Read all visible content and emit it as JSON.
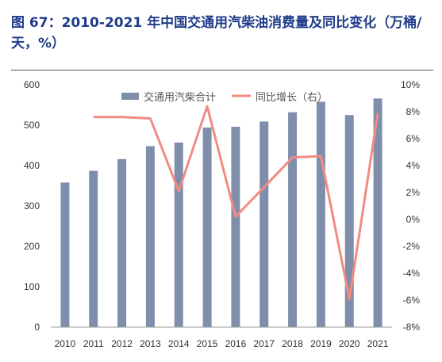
{
  "title": "图 67：2010-2021 年中国交通用汽柴油消费量及同比变化（万桶/天，%）",
  "chart_data": {
    "type": "bar",
    "categories": [
      "2010",
      "2011",
      "2012",
      "2013",
      "2014",
      "2015",
      "2016",
      "2017",
      "2018",
      "2019",
      "2020",
      "2021"
    ],
    "series": [
      {
        "name": "交通用汽柴合计",
        "type": "bar",
        "axis": "left",
        "values": [
          358,
          387,
          416,
          448,
          457,
          494,
          496,
          509,
          532,
          558,
          525,
          566
        ]
      },
      {
        "name": "同比增长（右）",
        "type": "line",
        "axis": "right",
        "values": [
          null,
          7.6,
          7.6,
          7.5,
          2.1,
          8.4,
          0.2,
          2.4,
          4.6,
          4.7,
          -5.9,
          7.9
        ]
      }
    ],
    "y_left": {
      "min": 0,
      "max": 600,
      "ticks": [
        0,
        100,
        200,
        300,
        400,
        500,
        600
      ]
    },
    "y_right": {
      "min": -8,
      "max": 10,
      "ticks": [
        "-8%",
        "-6%",
        "-4%",
        "-2%",
        "0%",
        "2%",
        "4%",
        "6%",
        "8%",
        "10%"
      ]
    },
    "legend_position": "top",
    "colors": {
      "bar": "#7f8eab",
      "line": "#f28b82",
      "title": "#1f3b8a"
    }
  }
}
